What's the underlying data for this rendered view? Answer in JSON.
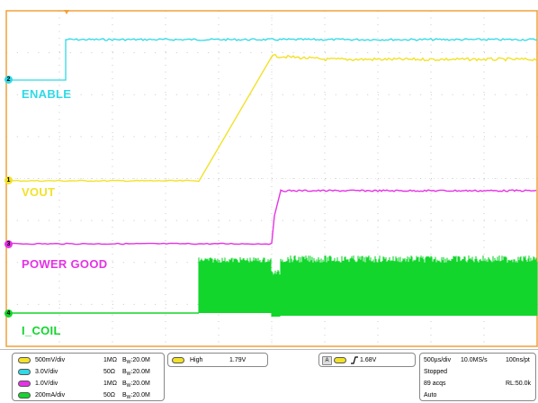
{
  "scope": {
    "colors": {
      "background": "#ffffff",
      "frame": "#f2a13a",
      "grid_dot": "#c8c8c8",
      "ch1": "#f2e22a",
      "ch2": "#2fd9e6",
      "ch3": "#e632e6",
      "ch4": "#12d62c"
    },
    "trigger_marker_icon": "down-triangle-icon",
    "channels": [
      {
        "id": "ch2",
        "marker": "2",
        "label": "ENABLE",
        "color": "#2fd9e6"
      },
      {
        "id": "ch1",
        "marker": "1",
        "label": "VOUT",
        "color": "#f2e22a"
      },
      {
        "id": "ch3",
        "marker": "3",
        "label": "POWER GOOD",
        "color": "#e632e6"
      },
      {
        "id": "ch4",
        "marker": "4",
        "label": "I_COIL",
        "color": "#12d62c"
      }
    ]
  },
  "panel": {
    "channel_settings": [
      {
        "chip": "C1",
        "color": "#f2e22a",
        "scale": "500mV/div",
        "impedance": "1MΩ",
        "bw_prefix": "B",
        "bw_sub": "W",
        "bw_value": ":20.0M"
      },
      {
        "chip": "C2",
        "color": "#2fd9e6",
        "scale": "3.0V/div",
        "impedance": "50Ω",
        "bw_prefix": "B",
        "bw_sub": "W",
        "bw_value": ":20.0M"
      },
      {
        "chip": "C3",
        "color": "#e632e6",
        "scale": "1.0V/div",
        "impedance": "1MΩ",
        "bw_prefix": "B",
        "bw_sub": "W",
        "bw_value": ":20.0M"
      },
      {
        "chip": "C4",
        "color": "#12d62c",
        "scale": "200mA/div",
        "impedance": "50Ω",
        "bw_prefix": "B",
        "bw_sub": "W",
        "bw_value": ":20.0M"
      }
    ],
    "measurement": {
      "chip": "C1",
      "name": "High",
      "value": "1.79V"
    },
    "trigger": {
      "source_tag": "A",
      "chip": "C1",
      "level": "1.68V",
      "edge_icon": "rising-edge-icon"
    },
    "acquisition": {
      "timebase": "500µs/div",
      "sample_rate": "10.0MS/s",
      "resolution": "100ns/pt",
      "state": "Stopped",
      "acqs": "89 acqs",
      "record_length": "RL:50.0k",
      "mode": "Auto"
    }
  }
}
